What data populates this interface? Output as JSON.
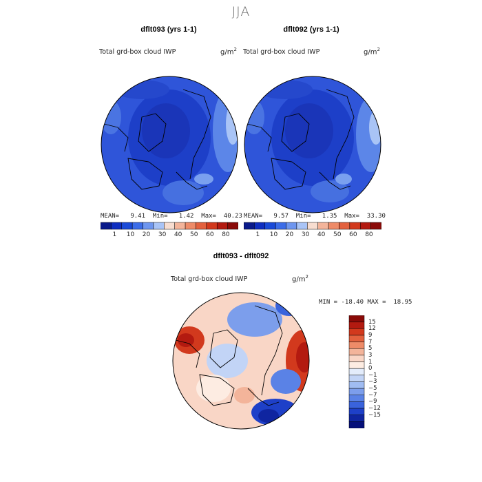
{
  "page": {
    "title": "JJA"
  },
  "panels": [
    {
      "title": "dflt093 (yrs 1-1)",
      "field": "Total grd-box cloud IWP",
      "units_base": "g/m",
      "units_exp": "2",
      "stats": "MEAN=   9.41  Min=   1.42  Max=  40.23"
    },
    {
      "title": "dflt092 (yrs 1-1)",
      "field": "Total grd-box cloud IWP",
      "units_base": "g/m",
      "units_exp": "2",
      "stats": "MEAN=   9.57  Min=   1.35  Max=  33.30"
    }
  ],
  "colorbar_abs": {
    "colors": [
      "#0a1a8a",
      "#0f2ec0",
      "#1a4ad8",
      "#3c6de8",
      "#6e96ef",
      "#a9c4f6",
      "#f7ddd0",
      "#f3b49a",
      "#ee8b68",
      "#e3613e",
      "#d2391d",
      "#b31a10",
      "#8a0a08"
    ],
    "ticks": [
      "1",
      "10",
      "20",
      "30",
      "40",
      "50",
      "60",
      "80"
    ]
  },
  "diff_panel": {
    "title": "dflt093 - dflt092",
    "field": "Total grd-box cloud IWP",
    "units_base": "g/m",
    "units_exp": "2",
    "stats": "MIN = -18.40 MAX =  18.95"
  },
  "colorbar_diff": {
    "colors": [
      "#8a0a08",
      "#b31a10",
      "#d2391d",
      "#e3613e",
      "#ee8b68",
      "#f3b49a",
      "#f9d6c6",
      "#fdece2",
      "#e3ecfb",
      "#c2d4f6",
      "#a0bcf2",
      "#7c9eec",
      "#5a82e6",
      "#3a63dc",
      "#1e40c8",
      "#0f25a0",
      "#050f7a"
    ],
    "ticks": [
      "15",
      "12",
      "9",
      "7",
      "5",
      "3",
      "1",
      "0",
      "−1",
      "−3",
      "−5",
      "−7",
      "−9",
      "−12",
      "−15"
    ]
  }
}
